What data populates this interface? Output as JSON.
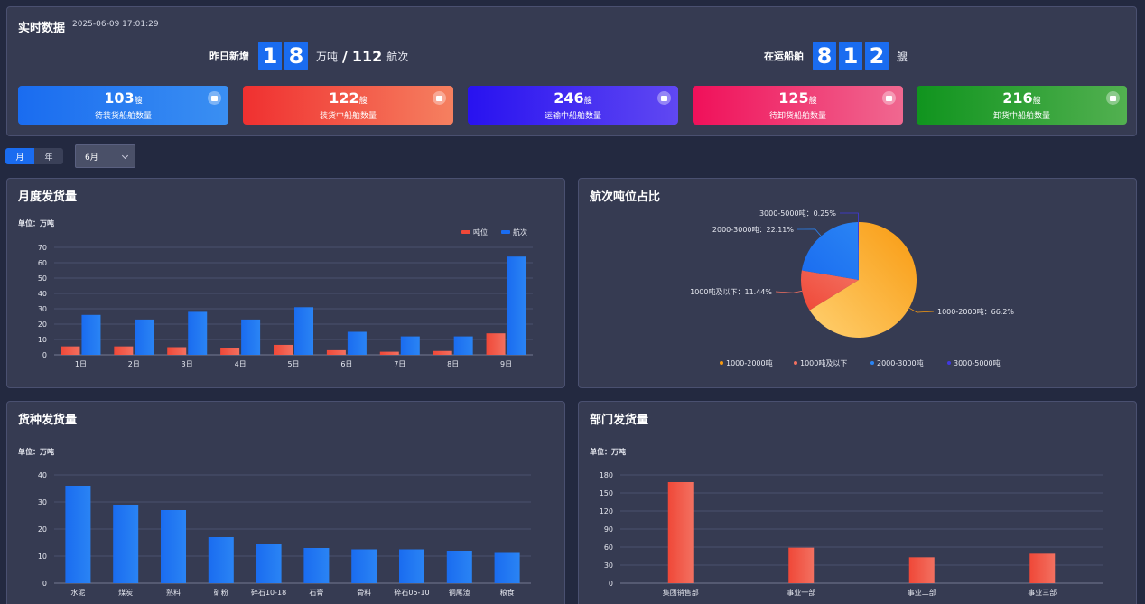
{
  "realtime": {
    "title": "实时数据",
    "timestamp": "2025-06-09 17:01:29",
    "yesterday": {
      "label": "昨日新增",
      "digits": [
        "1",
        "8"
      ],
      "unit1": "万吨",
      "sep": "/",
      "voyages": "112",
      "unit2": "航次"
    },
    "transit": {
      "label": "在运船舶",
      "digits": [
        "8",
        "1",
        "2"
      ],
      "unit": "艘"
    },
    "cards": [
      {
        "value": "103",
        "unit": "艘",
        "label": "待装货船舶数量",
        "colors": [
          "#1a6cf0",
          "#3a8ff2"
        ]
      },
      {
        "value": "122",
        "unit": "艘",
        "label": "装货中船舶数量",
        "colors": [
          "#f03030",
          "#f58060"
        ]
      },
      {
        "value": "246",
        "unit": "艘",
        "label": "运输中船舶数量",
        "colors": [
          "#2812f0",
          "#6048f2"
        ]
      },
      {
        "value": "125",
        "unit": "艘",
        "label": "待卸货船舶数量",
        "colors": [
          "#f0105a",
          "#f06890"
        ]
      },
      {
        "value": "216",
        "unit": "艘",
        "label": "卸货中船舶数量",
        "colors": [
          "#10941e",
          "#52b050"
        ]
      }
    ]
  },
  "controls": {
    "toggle": [
      "月",
      "年"
    ],
    "selected_month": "6月"
  },
  "colors": {
    "red": "#f04838",
    "blue": "#1a6cf0",
    "orange": "#f89a10",
    "purple": "#4038e0"
  },
  "chart_data": [
    {
      "type": "bar",
      "title": "月度发货量",
      "unit_label": "单位：万吨",
      "categories": [
        "1日",
        "2日",
        "3日",
        "4日",
        "5日",
        "6日",
        "7日",
        "8日",
        "9日"
      ],
      "series": [
        {
          "name": "吨位",
          "values": [
            5.5,
            5.5,
            5,
            4.5,
            6.5,
            3,
            2,
            2.5,
            14
          ]
        },
        {
          "name": "航次",
          "values": [
            26,
            23,
            28,
            23,
            31,
            15,
            12,
            12,
            64
          ]
        }
      ],
      "ylim": [
        0,
        70
      ],
      "yticks": [
        0,
        10,
        20,
        30,
        40,
        50,
        60,
        70
      ],
      "legend": "top-right"
    },
    {
      "type": "pie",
      "title": "航次吨位占比",
      "slices": [
        {
          "name": "1000-2000吨",
          "label": "1000-2000吨：66.2%",
          "value": 66.2
        },
        {
          "name": "1000吨及以下",
          "label": "1000吨及以下：11.44%",
          "value": 11.44
        },
        {
          "name": "2000-3000吨",
          "label": "2000-3000吨：22.11%",
          "value": 22.11
        },
        {
          "name": "3000-5000吨",
          "label": "3000-5000吨：0.25%",
          "value": 0.25
        }
      ],
      "legend": "bottom"
    },
    {
      "type": "bar",
      "title": "货种发货量",
      "unit_label": "单位：万吨",
      "categories": [
        "水泥",
        "煤炭",
        "熟料",
        "矿粉",
        "碎石10-18",
        "石膏",
        "骨料",
        "碎石05-10",
        "铜尾渣",
        "粮食"
      ],
      "values": [
        36,
        29,
        27,
        17,
        14.5,
        13,
        12.5,
        12.5,
        12,
        11.5
      ],
      "ylim": [
        0,
        40
      ],
      "yticks": [
        0,
        10,
        20,
        30,
        40
      ]
    },
    {
      "type": "bar",
      "title": "部门发货量",
      "unit_label": "单位：万吨",
      "categories": [
        "集团销售部",
        "事业一部",
        "事业二部",
        "事业三部"
      ],
      "values": [
        168,
        59,
        43,
        49
      ],
      "ylim": [
        0,
        180
      ],
      "yticks": [
        0,
        30,
        60,
        90,
        120,
        150,
        180
      ]
    }
  ]
}
